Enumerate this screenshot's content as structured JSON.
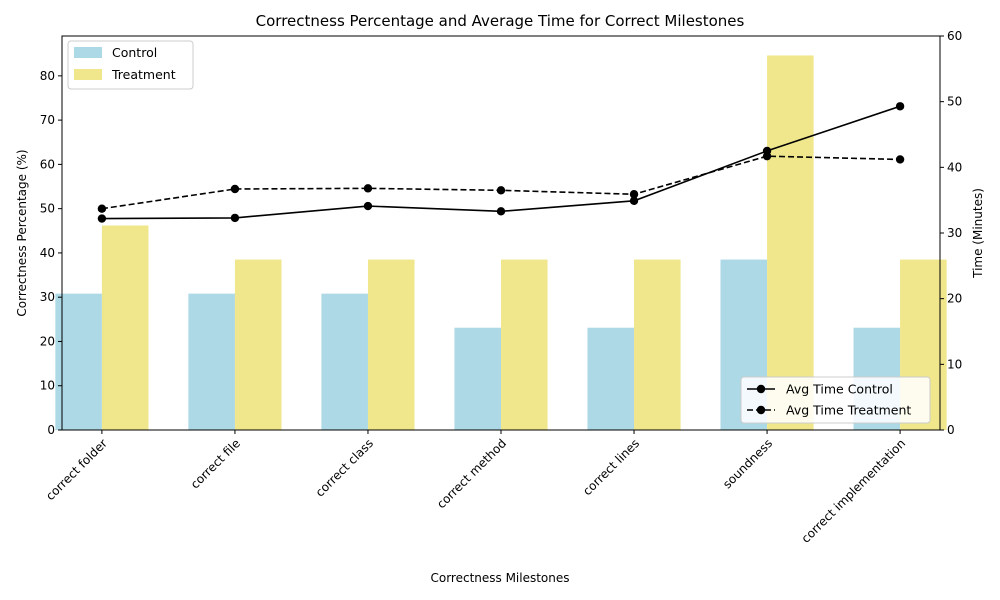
{
  "chart_data": {
    "type": "bar",
    "title": "Correctness Percentage and Average Time for Correct Milestones",
    "xlabel": "Correctness Milestones",
    "ylabel": "Correctness Percentage (%)",
    "y2label": "Time (Minutes)",
    "categories": [
      "correct folder",
      "correct file",
      "correct class",
      "correct method",
      "correct lines",
      "soundness",
      "correct implementation"
    ],
    "ylim": [
      0,
      89
    ],
    "y2lim": [
      0,
      60
    ],
    "yticks": [
      0,
      10,
      20,
      30,
      40,
      50,
      60,
      70,
      80
    ],
    "y2ticks": [
      0,
      10,
      20,
      30,
      40,
      50,
      60
    ],
    "grid": false,
    "bar_series": [
      {
        "name": "Control",
        "color": "#add8e6",
        "values": [
          30.8,
          30.8,
          30.8,
          23.1,
          23.1,
          38.5,
          23.1
        ]
      },
      {
        "name": "Treatment",
        "color": "#f0e68c",
        "values": [
          46.2,
          38.5,
          38.5,
          38.5,
          38.5,
          84.6,
          38.5
        ]
      }
    ],
    "line_series": [
      {
        "name": "Avg Time Control",
        "color": "#000000",
        "dashed": false,
        "axis": "right",
        "values": [
          32.2,
          32.3,
          34.1,
          33.3,
          34.9,
          42.5,
          49.3
        ]
      },
      {
        "name": "Avg Time Treatment",
        "color": "#000000",
        "dashed": true,
        "axis": "right",
        "values": [
          33.7,
          36.7,
          36.8,
          36.5,
          35.9,
          41.7,
          41.2
        ]
      }
    ],
    "bar_legend_position": "upper-left",
    "line_legend_position": "lower-right"
  }
}
